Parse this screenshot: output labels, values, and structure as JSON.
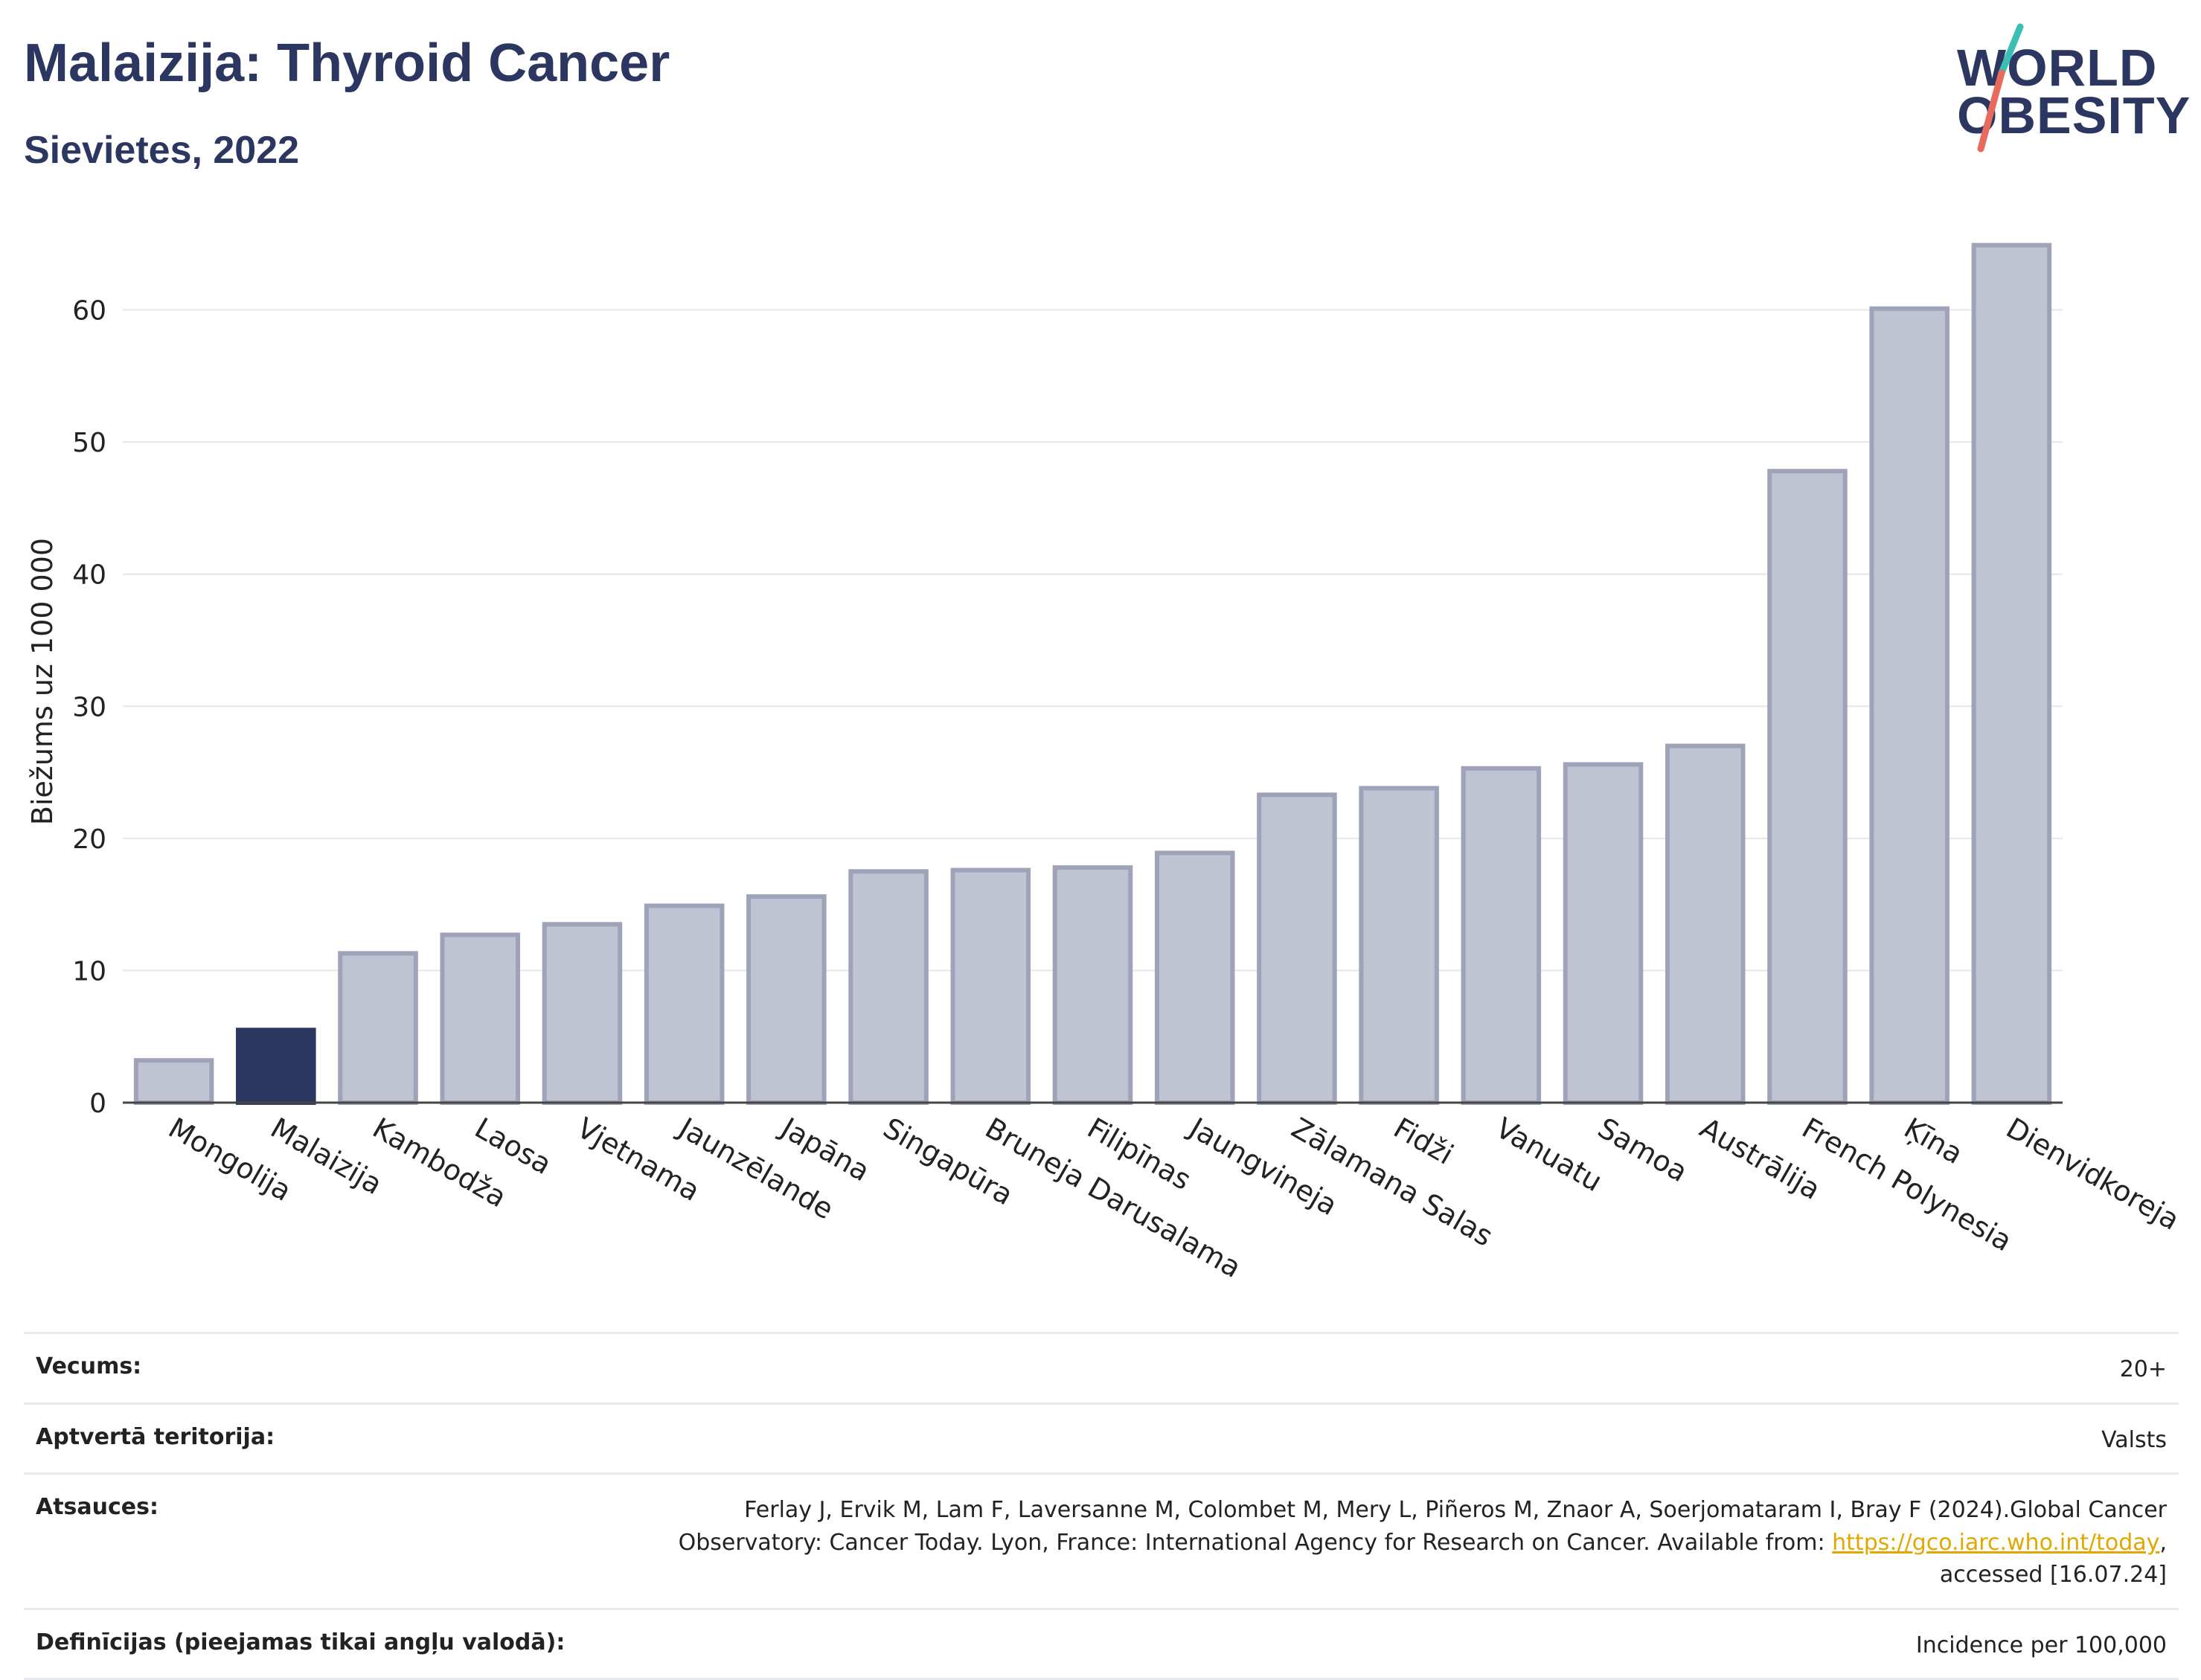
{
  "header": {
    "title": "Malaizija: Thyroid Cancer",
    "subtitle": "Sievietes, 2022"
  },
  "logo": {
    "line1": "WORLD",
    "line2": "OBESITY"
  },
  "colors": {
    "highlight": "#2b3761",
    "bar_fill": "#c0c3d1",
    "bar_stroke": "#9fa3ba",
    "title": "#2b3761",
    "link": "#e0a800"
  },
  "chart_data": {
    "type": "bar",
    "ylabel": "Biežums uz 100 000",
    "xlabel": "",
    "ylim": [
      0,
      66
    ],
    "yticks": [
      0,
      10,
      20,
      30,
      40,
      50,
      60
    ],
    "grid": true,
    "highlight": "Malaizija",
    "categories": [
      "Mongolija",
      "Malaizija",
      "Kambodža",
      "Laosa",
      "Vjetnama",
      "Jaunzēlande",
      "Japāna",
      "Singapūra",
      "Bruneja Darusalama",
      "Filipīnas",
      "Jaungvineja",
      "Zālamana Salas",
      "Fidži",
      "Vanuatu",
      "Samoa",
      "Austrālija",
      "French Polynesia",
      "Ķīna",
      "Dienvidkoreja"
    ],
    "values": [
      3.2,
      5.5,
      11.3,
      12.7,
      13.5,
      14.9,
      15.6,
      17.5,
      17.6,
      17.8,
      18.9,
      23.3,
      23.8,
      25.3,
      25.6,
      27.0,
      47.8,
      60.1,
      64.9
    ]
  },
  "meta": {
    "rows": [
      {
        "label": "Vecums:",
        "value": "20+"
      },
      {
        "label": "Aptvertā teritorija:",
        "value": "Valsts"
      },
      {
        "label": "Atsauces:",
        "value_line1": "Ferlay J, Ervik M, Lam F, Laversanne M, Colombet M, Mery L, Piñeros M, Znaor A, Soerjomataram I, Bray F (2024).Global Cancer",
        "value_line2_pre": "Observatory: Cancer Today. Lyon, France: International Agency for Research on Cancer. Available from: ",
        "value_link": "https://gco.iarc.who.int/today",
        "value_line2_post": ",",
        "value_line3": "accessed [16.07.24]"
      },
      {
        "label": "Definīcijas (pieejamas tikai angļu valodā):",
        "value": "Incidence per 100,000"
      }
    ]
  }
}
